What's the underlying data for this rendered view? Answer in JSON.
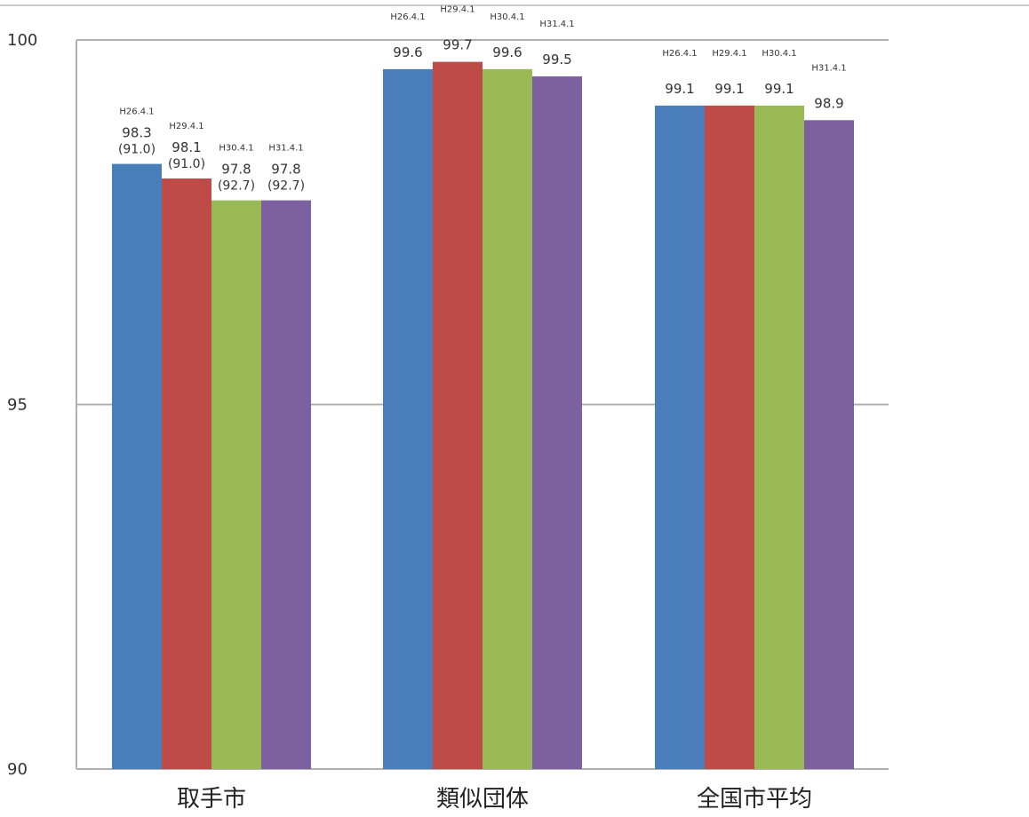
{
  "chart_data": {
    "type": "bar",
    "title": "",
    "xlabel": "",
    "ylabel": "",
    "ylim": [
      90,
      100
    ],
    "yticks": [
      90,
      95,
      100
    ],
    "grid": true,
    "legend": "none",
    "categories": [
      "取手市",
      "類似団体",
      "全国市平均"
    ],
    "series": [
      {
        "color": "#4a7ebb",
        "values": [
          98.3,
          99.6,
          99.1
        ],
        "period_labels": [
          "H26.4.1",
          "H26.4.1",
          "H26.4.1"
        ],
        "value_labels": [
          "98.3",
          "99.6",
          "99.1"
        ],
        "paren_labels": [
          "(91.0)",
          "",
          ""
        ]
      },
      {
        "color": "#be4b48",
        "values": [
          98.1,
          99.7,
          99.1
        ],
        "period_labels": [
          "H29.4.1",
          "H29.4.1",
          "H29.4.1"
        ],
        "value_labels": [
          "98.1",
          "99.7",
          "99.1"
        ],
        "paren_labels": [
          "(91.0)",
          "",
          ""
        ]
      },
      {
        "color": "#98b954",
        "values": [
          97.8,
          99.6,
          99.1
        ],
        "period_labels": [
          "H30.4.1",
          "H30.4.1",
          "H30.4.1"
        ],
        "value_labels": [
          "97.8",
          "99.6",
          "99.1"
        ],
        "paren_labels": [
          "(92.7)",
          "",
          ""
        ]
      },
      {
        "color": "#7d60a0",
        "values": [
          97.8,
          99.5,
          98.9
        ],
        "period_labels": [
          "H31.4.1",
          "H31.4.1",
          "H31.4.1"
        ],
        "value_labels": [
          "97.8",
          "99.5",
          "98.9"
        ],
        "paren_labels": [
          "(92.7)",
          "",
          ""
        ]
      }
    ]
  }
}
